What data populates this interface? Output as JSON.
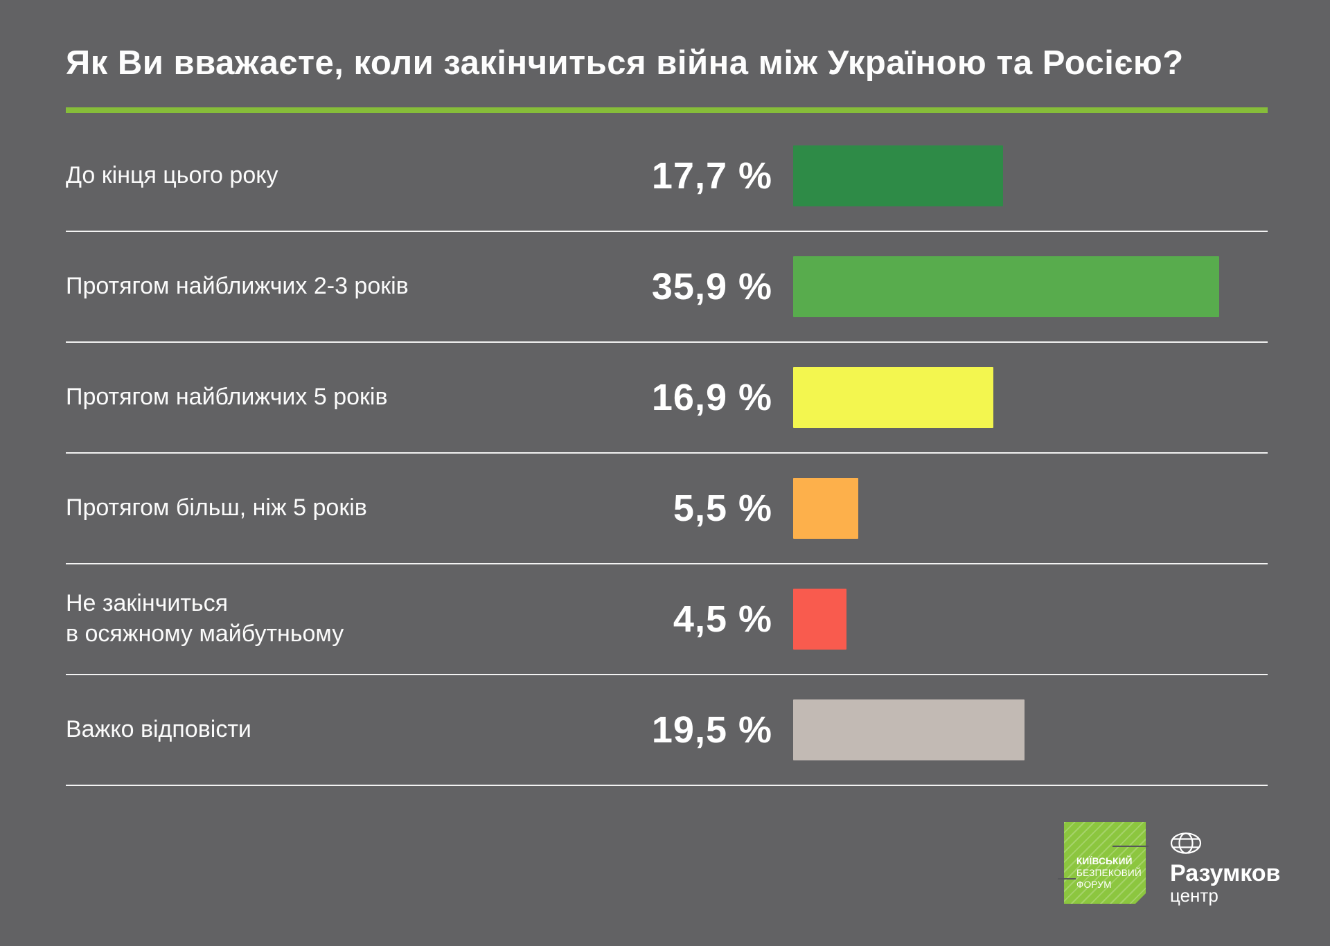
{
  "title": "Як Ви вважаєте, коли закінчиться війна між Україною та Росією?",
  "colors": {
    "background": "#626264",
    "title_underline": "#86BD3A",
    "divider": "#F5F5F5",
    "text": "#FFFFFF",
    "kbf_logo_green": "#8CC63F"
  },
  "chart_data": {
    "type": "bar",
    "orientation": "horizontal",
    "title": "Як Ви вважаєте, коли закінчиться війна між Україною та Росією?",
    "categories": [
      "До кінця цього року",
      "Протягом найближчих 2-3 років",
      "Протягом найближчих 5 років",
      "Протягом більш, ніж 5 років",
      "Не закінчиться\nв осяжному майбутньому",
      "Важко відповісти"
    ],
    "values": [
      17.7,
      35.9,
      16.9,
      5.5,
      4.5,
      19.5
    ],
    "value_labels": [
      "17,7 %",
      "35,9 %",
      "16,9 %",
      "5,5 %",
      "4,5 %",
      "19,5 %"
    ],
    "bar_colors": [
      "#2E8B47",
      "#58AC4D",
      "#F3F64F",
      "#FDB04B",
      "#F95B4E",
      "#C2BAB4"
    ],
    "unit": "%",
    "xlim": [
      0,
      40
    ],
    "grid": false,
    "legend": "none",
    "value_label_position": "left-of-bar"
  },
  "footer": {
    "kbf_logo": {
      "lines": [
        "КИЇВСЬКИЙ",
        "БЕЗПЕКОВИЙ",
        "ФОРУМ"
      ]
    },
    "razumkov_logo": {
      "title": "Разумков",
      "subtitle": "центр"
    }
  }
}
